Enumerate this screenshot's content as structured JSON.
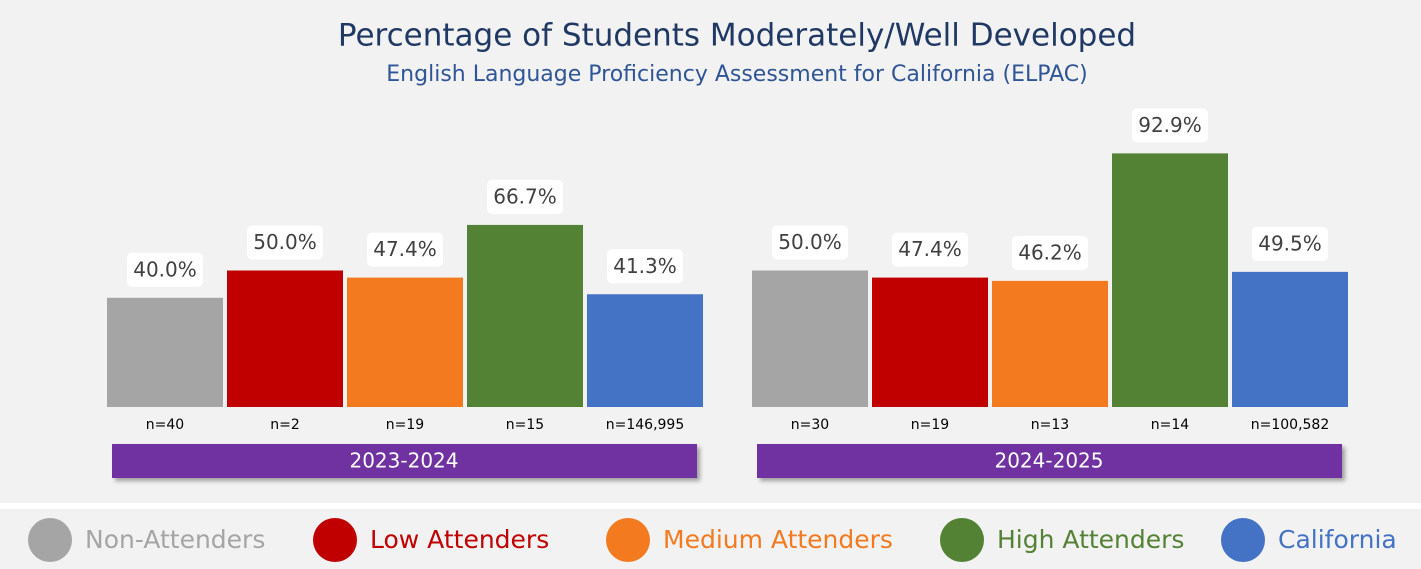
{
  "chart_data": {
    "type": "bar",
    "title": "Percentage of Students Moderately/Well Developed",
    "subtitle": "English Language Proficiency Assessment for California (ELPAC)",
    "categories": [
      "2023-2024",
      "2024-2025"
    ],
    "ylim": [
      0,
      100
    ],
    "series": [
      {
        "name": "Non-Attenders",
        "color": "#a5a5a5",
        "values": [
          40.0,
          50.0
        ],
        "value_labels": [
          "40.0%",
          "50.0%"
        ],
        "n_labels": [
          "n=40",
          "n=30"
        ]
      },
      {
        "name": "Low Attenders",
        "color": "#c00000",
        "values": [
          50.0,
          47.4
        ],
        "value_labels": [
          "50.0%",
          "47.4%"
        ],
        "n_labels": [
          "n=2",
          "n=19"
        ]
      },
      {
        "name": "Medium Attenders",
        "color": "#f47a20",
        "values": [
          47.4,
          46.2
        ],
        "value_labels": [
          "47.4%",
          "46.2%"
        ],
        "n_labels": [
          "n=19",
          "n=13"
        ]
      },
      {
        "name": "High Attenders",
        "color": "#548235",
        "values": [
          66.7,
          92.9
        ],
        "value_labels": [
          "66.7%",
          "92.9%"
        ],
        "n_labels": [
          "n=15",
          "n=14"
        ]
      },
      {
        "name": "California",
        "color": "#4472c4",
        "values": [
          41.3,
          49.5
        ],
        "value_labels": [
          "41.3%",
          "49.5%"
        ],
        "n_labels": [
          "n=146,995",
          "n=100,582"
        ]
      }
    ],
    "legend": "bottom"
  }
}
